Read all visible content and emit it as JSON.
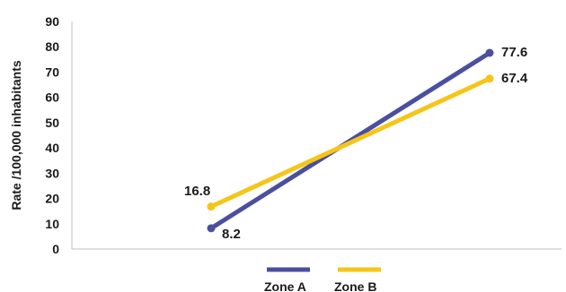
{
  "chart_data": {
    "type": "line",
    "title": "",
    "xlabel": "",
    "ylabel": "Rate /100,000 inhabitants",
    "x": [
      "",
      ""
    ],
    "ylim": [
      0,
      90
    ],
    "yticks": [
      0,
      10,
      20,
      30,
      40,
      50,
      60,
      70,
      80,
      90
    ],
    "grid": false,
    "legend_position": "bottom",
    "series": [
      {
        "name": "Zone A",
        "values": [
          8.2,
          77.6
        ],
        "labels": [
          "8.2",
          "77.6"
        ],
        "color": "#4a4f9e"
      },
      {
        "name": "Zone B",
        "values": [
          16.8,
          67.4
        ],
        "labels": [
          "16.8",
          "67.4"
        ],
        "color": "#f5c518"
      }
    ]
  }
}
